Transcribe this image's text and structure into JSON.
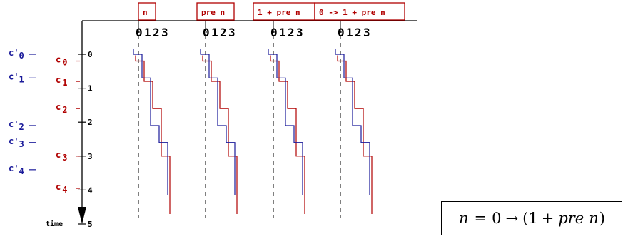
{
  "colors": {
    "red": "#b00000",
    "blue": "#1a1a9a",
    "black": "#000000"
  },
  "columns": [
    {
      "label": "n",
      "digits": [
        "0",
        "1",
        "2",
        "3"
      ]
    },
    {
      "label": "pre n",
      "digits": [
        "0",
        "1",
        "2",
        "3"
      ]
    },
    {
      "label": "1 + pre n",
      "digits": [
        "0",
        "1",
        "2",
        "3"
      ]
    },
    {
      "label": "0 -> 1 + pre n",
      "digits": [
        "0",
        "1",
        "2",
        "3"
      ]
    }
  ],
  "time_axis": {
    "label": "time",
    "ticks": [
      "0",
      "1",
      "2",
      "3",
      "4",
      "5"
    ]
  },
  "red_clocks": [
    {
      "base": "c",
      "sub": "0"
    },
    {
      "base": "c",
      "sub": "1"
    },
    {
      "base": "c",
      "sub": "2"
    },
    {
      "base": "c",
      "sub": "3"
    },
    {
      "base": "c",
      "sub": "4"
    }
  ],
  "blue_clocks": [
    {
      "base": "c'",
      "sub": "0"
    },
    {
      "base": "c'",
      "sub": "1"
    },
    {
      "base": "c'",
      "sub": "2"
    },
    {
      "base": "c'",
      "sub": "3"
    },
    {
      "base": "c'",
      "sub": "4"
    }
  ],
  "formula": {
    "lhs": "n",
    "eq": "=",
    "zero": "0",
    "arrow": "→",
    "open": "(",
    "one": "1",
    "plus": "+",
    "pre": "pre",
    "n": "n",
    "close": ")"
  }
}
